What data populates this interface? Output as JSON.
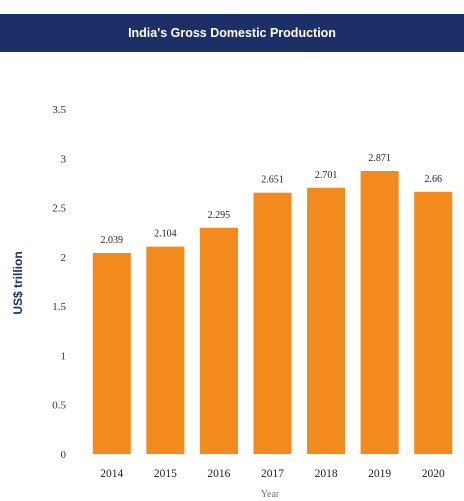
{
  "header": {
    "title": "India's Gross Domestic Production"
  },
  "chart_data": {
    "type": "bar",
    "title": "India's Gross Domestic Production",
    "xlabel": "Year",
    "ylabel": "US$ trillion",
    "categories": [
      "2014",
      "2015",
      "2016",
      "2017",
      "2018",
      "2019",
      "2020"
    ],
    "values": [
      2.039,
      2.104,
      2.295,
      2.651,
      2.701,
      2.871,
      2.66
    ],
    "value_labels": [
      "2.039",
      "2.104",
      "2.295",
      "2.651",
      "2.701",
      "2.871",
      "2.66"
    ],
    "ylim": [
      0,
      3.5
    ],
    "yticks": [
      "0",
      "0.5",
      "1",
      "1.5",
      "2",
      "2.5",
      "3",
      "3.5"
    ],
    "grid": false,
    "legend": "none",
    "colors": {
      "bar": "#f28a1e",
      "header_bg": "#1c2f66"
    }
  }
}
